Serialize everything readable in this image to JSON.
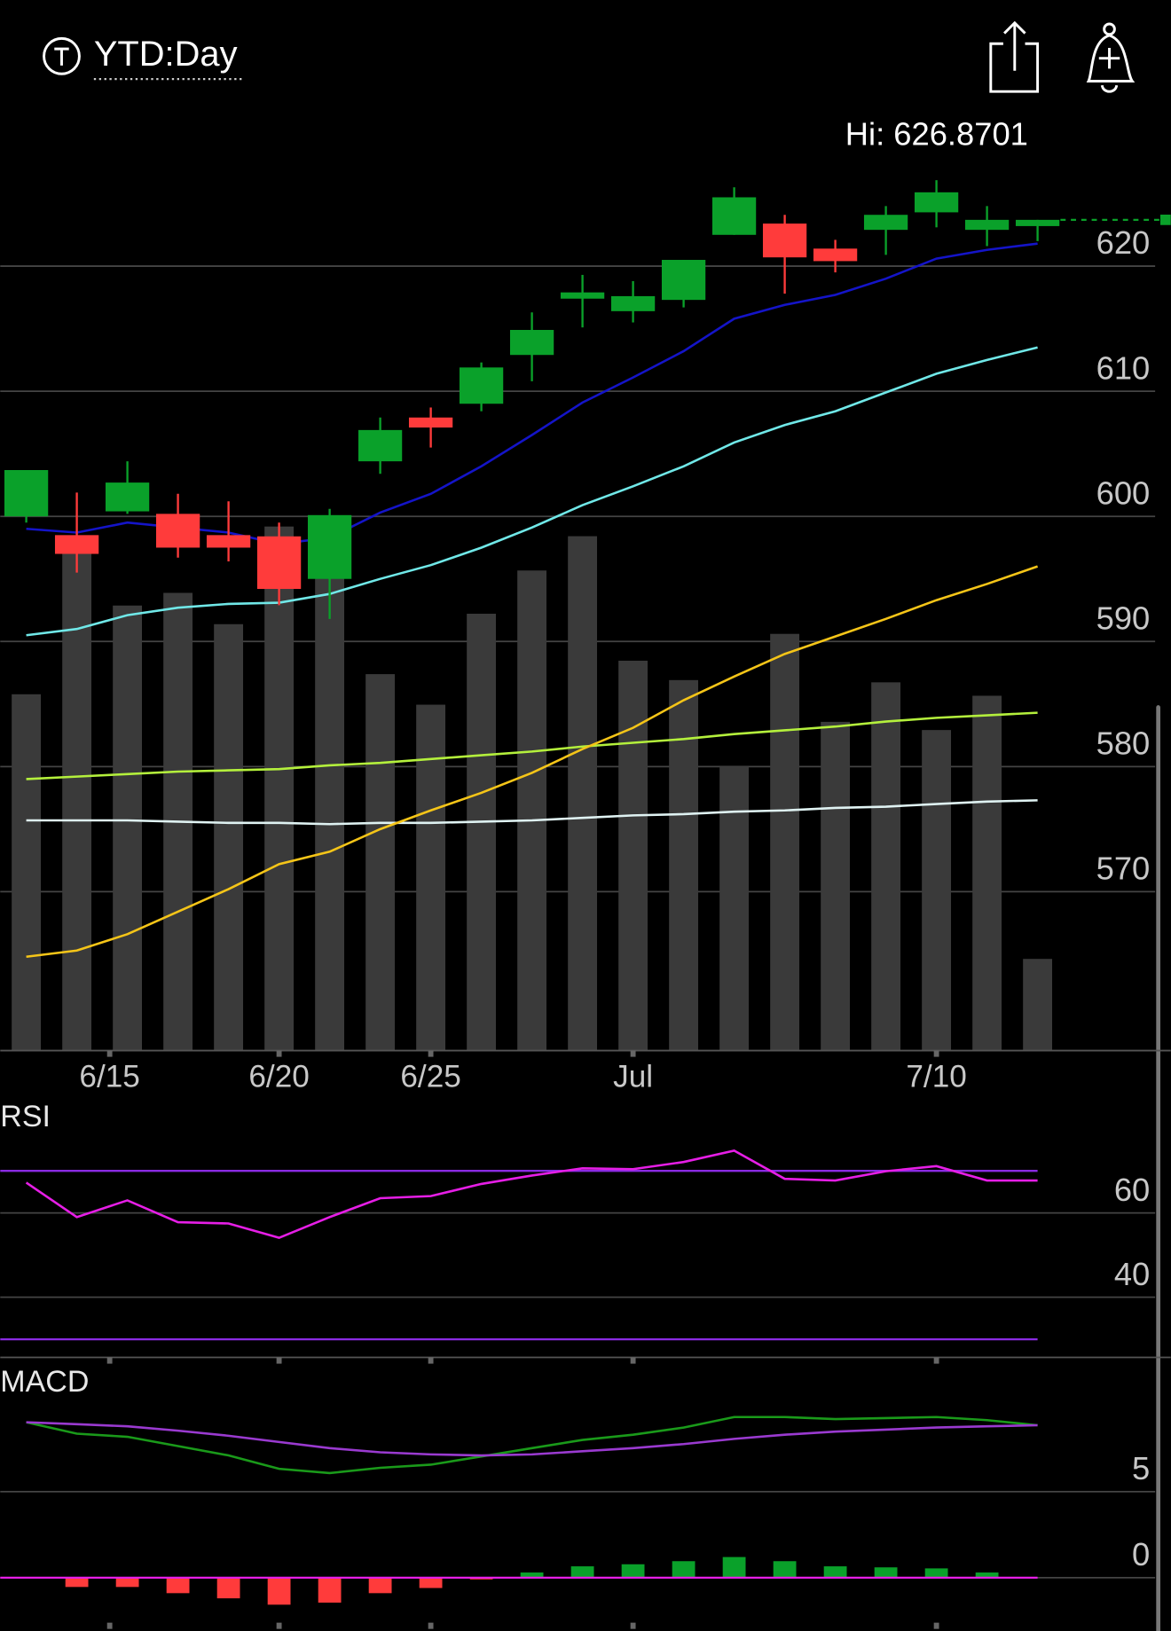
{
  "header": {
    "title": "YTD:Day"
  },
  "chart_data": [
    {
      "type": "candlestick",
      "annotation": "Hi: 626.8701",
      "categories": [
        null,
        null,
        null,
        null,
        null,
        null,
        null,
        null,
        null,
        null,
        null,
        null,
        null,
        null,
        null,
        null,
        null,
        null,
        null,
        null,
        null
      ],
      "xticks": [
        {
          "value": 1.65,
          "label": "6/15"
        },
        {
          "value": 5,
          "label": "6/20"
        },
        {
          "value": 8,
          "label": "6/25"
        },
        {
          "value": 12,
          "label": "Jul"
        },
        {
          "value": 18,
          "label": "7/10"
        }
      ],
      "open": [
        600.0,
        598.5,
        600.4,
        600.2,
        598.5,
        598.4,
        595.0,
        604.4,
        607.9,
        609.0,
        612.9,
        617.4,
        616.4,
        617.3,
        622.5,
        623.4,
        621.4,
        622.9,
        624.3,
        622.9,
        623.2
      ],
      "high": [
        603.7,
        601.9,
        604.4,
        601.8,
        601.2,
        599.5,
        600.6,
        607.9,
        608.7,
        612.3,
        616.3,
        619.3,
        618.8,
        620.5,
        626.3,
        624.1,
        622.1,
        624.8,
        626.87,
        624.8,
        623.7
      ],
      "low": [
        599.5,
        595.5,
        600.2,
        596.7,
        596.4,
        592.9,
        591.8,
        603.4,
        605.5,
        608.4,
        610.8,
        615.1,
        615.5,
        616.7,
        622.5,
        617.8,
        619.5,
        620.9,
        623.1,
        621.6,
        622.0
      ],
      "close": [
        603.7,
        597.0,
        602.7,
        597.5,
        597.5,
        594.2,
        600.1,
        606.9,
        607.1,
        611.9,
        614.9,
        617.9,
        617.6,
        620.5,
        625.5,
        620.7,
        620.4,
        624.1,
        625.9,
        623.7,
        623.7
      ],
      "up_color": "#0aa12a",
      "down_color": "#ff3b3b",
      "ylim": [
        557.3,
        628.8
      ],
      "yticks": [
        620,
        610,
        600,
        590,
        580,
        570
      ],
      "grid": true,
      "last_price_line": true,
      "volume": {
        "color": "#3a3a3a",
        "ylim": [
          0,
          120
        ],
        "values": [
          47.8,
          66.9,
          59.7,
          61.4,
          57.2,
          70.3,
          71.8,
          50.5,
          46.4,
          58.6,
          64.4,
          69.0,
          52.3,
          49.7,
          38.1,
          55.9,
          44.1,
          49.4,
          43.0,
          47.6,
          12.3
        ]
      },
      "series": [
        {
          "color": "#dff2f2",
          "values": [
            575.7,
            575.7,
            575.7,
            575.6,
            575.5,
            575.5,
            575.4,
            575.5,
            575.5,
            575.6,
            575.7,
            575.9,
            576.1,
            576.2,
            576.4,
            576.5,
            576.7,
            576.8,
            577.0,
            577.2,
            577.3
          ]
        },
        {
          "color": "#b4f03c",
          "values": [
            579.0,
            579.2,
            579.4,
            579.6,
            579.7,
            579.8,
            580.1,
            580.3,
            580.6,
            580.9,
            581.2,
            581.6,
            581.9,
            582.2,
            582.6,
            582.9,
            583.2,
            583.6,
            583.9,
            584.1,
            584.3
          ]
        },
        {
          "color": "#f5c518",
          "values": [
            564.8,
            565.3,
            566.6,
            568.4,
            570.2,
            572.2,
            573.2,
            575.0,
            576.5,
            577.9,
            579.5,
            581.4,
            583.1,
            585.3,
            587.2,
            589.0,
            590.4,
            591.8,
            593.3,
            594.6,
            596.0
          ]
        },
        {
          "color": "#70e8e8",
          "values": [
            590.5,
            591.0,
            592.1,
            592.7,
            593.0,
            593.1,
            593.8,
            595.0,
            596.1,
            597.5,
            599.1,
            600.9,
            602.4,
            604.0,
            605.9,
            607.3,
            608.4,
            609.9,
            611.4,
            612.5,
            613.5
          ]
        },
        {
          "color": "#1414c8",
          "values": [
            599.0,
            598.7,
            599.5,
            599.1,
            598.7,
            597.8,
            598.3,
            600.3,
            601.8,
            604.0,
            606.5,
            609.1,
            611.1,
            613.2,
            615.8,
            616.9,
            617.7,
            619.0,
            620.6,
            621.3,
            621.8
          ]
        }
      ]
    },
    {
      "type": "line",
      "title": "RSI",
      "ylim": [
        25.7,
        86.2
      ],
      "yticks": [
        60,
        40
      ],
      "grid": true,
      "hlines": [
        70,
        30
      ],
      "hline_color": "#8a2be2",
      "series": [
        {
          "color": "#e61ee6",
          "values": [
            67.2,
            59.0,
            63.0,
            57.8,
            57.5,
            54.1,
            59.0,
            63.5,
            64.0,
            66.9,
            68.9,
            70.6,
            70.4,
            72.1,
            74.8,
            68.1,
            67.7,
            69.9,
            71.1,
            67.7,
            67.7
          ]
        }
      ]
    },
    {
      "type": "macd",
      "title": "MACD",
      "ylim": [
        -3.1,
        12.2
      ],
      "yticks": [
        5,
        0
      ],
      "grid": true,
      "zero_color": "#e61ee6",
      "histogram": {
        "positive_color": "#0aa12a",
        "negative_color": "#ff3b3b",
        "values": [
          0,
          -0.54,
          -0.54,
          -0.9,
          -1.2,
          -1.57,
          -1.45,
          -0.9,
          -0.6,
          -0.1,
          0.3,
          0.66,
          0.78,
          0.96,
          1.2,
          0.96,
          0.66,
          0.6,
          0.54,
          0.3,
          0
        ]
      },
      "series": [
        {
          "color": "#1a9a1a",
          "values": [
            9.04,
            8.37,
            8.19,
            7.65,
            7.11,
            6.33,
            6.08,
            6.39,
            6.57,
            7.05,
            7.53,
            8.01,
            8.31,
            8.73,
            9.34,
            9.34,
            9.22,
            9.28,
            9.34,
            9.16,
            8.86
          ]
        },
        {
          "color": "#9a3ad0",
          "values": [
            9.04,
            8.92,
            8.8,
            8.55,
            8.25,
            7.89,
            7.53,
            7.29,
            7.17,
            7.11,
            7.17,
            7.35,
            7.53,
            7.77,
            8.07,
            8.31,
            8.49,
            8.61,
            8.73,
            8.8,
            8.86
          ]
        }
      ]
    }
  ]
}
